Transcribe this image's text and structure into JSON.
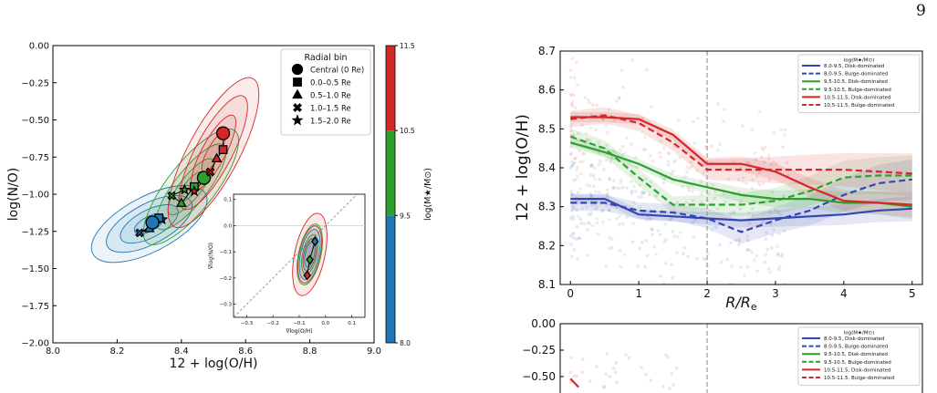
{
  "page_number": "9",
  "chart_data": [
    {
      "type": "scatter",
      "xlabel": "12 + log(O/H)",
      "ylabel": "log(N/O)",
      "xlim": [
        8.0,
        9.0
      ],
      "ylim": [
        -2.0,
        0.0
      ],
      "xticks": [
        "8.0",
        "8.2",
        "8.4",
        "8.6",
        "8.8",
        "9.0"
      ],
      "yticks": [
        "0.00",
        "−0.25",
        "−0.50",
        "−0.75",
        "−1.00",
        "−1.25",
        "−1.50",
        "−1.75",
        "−2.00"
      ],
      "legend": {
        "title": "Radial bin",
        "placement": "top-right",
        "entries": [
          {
            "label": "Central (0 Re)",
            "marker": "circle"
          },
          {
            "label": "0.0–0.5 Re",
            "marker": "square"
          },
          {
            "label": "0.5–1.0 Re",
            "marker": "triangle"
          },
          {
            "label": "1.0–1.5 Re",
            "marker": "x"
          },
          {
            "label": "1.5–2.0 Re",
            "marker": "star"
          }
        ]
      },
      "colorbar": {
        "label": "log(M★/M⊙)",
        "ticks": [
          "8.0",
          "9.5",
          "10.5",
          "11.5"
        ],
        "bins": [
          {
            "from": 8.0,
            "to": 9.5,
            "color": "#1f77b4"
          },
          {
            "from": 9.5,
            "to": 10.5,
            "color": "#2ca02c"
          },
          {
            "from": 10.5,
            "to": 11.5,
            "color": "#d62728"
          }
        ]
      },
      "series": [
        {
          "color": "#1f77b4",
          "points": [
            {
              "bin": "circle",
              "x": 8.31,
              "y": -1.19
            },
            {
              "bin": "square",
              "x": 8.33,
              "y": -1.16
            },
            {
              "bin": "triangle",
              "x": 8.3,
              "y": -1.23
            },
            {
              "bin": "x",
              "x": 8.27,
              "y": -1.26
            },
            {
              "bin": "star",
              "x": 8.34,
              "y": -1.17
            }
          ]
        },
        {
          "color": "#2ca02c",
          "points": [
            {
              "bin": "circle",
              "x": 8.47,
              "y": -0.89
            },
            {
              "bin": "square",
              "x": 8.44,
              "y": -0.95
            },
            {
              "bin": "triangle",
              "x": 8.4,
              "y": -1.06
            },
            {
              "bin": "x",
              "x": 8.37,
              "y": -1.01
            },
            {
              "bin": "star",
              "x": 8.41,
              "y": -0.97
            }
          ]
        },
        {
          "color": "#d62728",
          "points": [
            {
              "bin": "circle",
              "x": 8.53,
              "y": -0.59
            },
            {
              "bin": "square",
              "x": 8.53,
              "y": -0.7
            },
            {
              "bin": "triangle",
              "x": 8.51,
              "y": -0.76
            },
            {
              "bin": "x",
              "x": 8.49,
              "y": -0.85
            },
            {
              "bin": "star",
              "x": 8.44,
              "y": -0.98
            }
          ]
        }
      ],
      "inset": {
        "xlabel": "∇log(O/H)",
        "ylabel": "∇log(N/O)",
        "xlim": [
          -0.35,
          0.15
        ],
        "ylim": [
          -0.35,
          0.12
        ],
        "xticks": [
          "−0.3",
          "−0.2",
          "−0.1",
          "0.0",
          "0.1"
        ],
        "yticks": [
          "0.1",
          "0.0",
          "−0.1",
          "−0.2",
          "−0.3"
        ],
        "points": [
          {
            "color": "#1f77b4",
            "x": -0.04,
            "y": -0.06
          },
          {
            "color": "#2ca02c",
            "x": -0.06,
            "y": -0.13
          },
          {
            "color": "#d62728",
            "x": -0.07,
            "y": -0.19
          }
        ]
      }
    },
    {
      "type": "line",
      "xlabel": "R/Re",
      "ylabel": "12 + log(O/H)",
      "xlim": [
        -0.15,
        5.15
      ],
      "ylim": [
        8.1,
        8.7
      ],
      "xticks": [
        "0",
        "1",
        "2",
        "3",
        "4",
        "5"
      ],
      "yticks": [
        "8.1",
        "8.2",
        "8.3",
        "8.4",
        "8.5",
        "8.6",
        "8.7"
      ],
      "vline": 2,
      "legend": {
        "title": "log(M★/M⊙)",
        "placement": "top-right"
      },
      "series": [
        {
          "name": "8.0-9.5, Disk-dominated",
          "color": "#3446b0",
          "dash": false,
          "x": [
            0,
            0.5,
            1,
            1.5,
            2,
            2.5,
            3,
            3.5,
            4,
            4.5,
            5
          ],
          "y": [
            8.32,
            8.32,
            8.28,
            8.275,
            8.27,
            8.265,
            8.27,
            8.275,
            8.28,
            8.29,
            8.295
          ]
        },
        {
          "name": "8.0-9.5, Bulge-dominated",
          "color": "#3446b0",
          "dash": true,
          "x": [
            0,
            0.5,
            1,
            1.5,
            2,
            2.5,
            3,
            3.5,
            4,
            4.5,
            5
          ],
          "y": [
            8.31,
            8.31,
            8.29,
            8.285,
            8.27,
            8.235,
            8.265,
            8.29,
            8.33,
            8.36,
            8.37
          ]
        },
        {
          "name": "9.5-10.5, Disk-dominated",
          "color": "#2ca02c",
          "dash": false,
          "x": [
            0,
            0.5,
            1,
            1.5,
            2,
            2.5,
            3,
            3.5,
            4,
            4.5,
            5
          ],
          "y": [
            8.465,
            8.44,
            8.41,
            8.37,
            8.35,
            8.33,
            8.32,
            8.32,
            8.31,
            8.31,
            8.3
          ]
        },
        {
          "name": "9.5-10.5, Bulge-dominated",
          "color": "#2ca02c",
          "dash": true,
          "x": [
            0,
            0.5,
            1,
            1.5,
            2,
            2.5,
            3,
            3.5,
            4,
            4.5,
            5
          ],
          "y": [
            8.48,
            8.45,
            8.375,
            8.305,
            8.305,
            8.305,
            8.315,
            8.34,
            8.375,
            8.38,
            8.38
          ]
        },
        {
          "name": "10.5-11.5, Disk-dominated",
          "color": "#d62728",
          "dash": false,
          "x": [
            0,
            0.5,
            1,
            1.5,
            2,
            2.5,
            3,
            3.5,
            4,
            4.5,
            5
          ],
          "y": [
            8.53,
            8.53,
            8.525,
            8.485,
            8.41,
            8.41,
            8.39,
            8.35,
            8.315,
            8.31,
            8.305
          ]
        },
        {
          "name": "10.5-11.5, Bulge-dominated",
          "color": "#d62728",
          "dash": true,
          "x": [
            0,
            0.5,
            1,
            1.5,
            2,
            2.5,
            3,
            3.5,
            4,
            4.5,
            5
          ],
          "y": [
            8.525,
            8.535,
            8.515,
            8.465,
            8.395,
            8.395,
            8.395,
            8.395,
            8.395,
            8.39,
            8.385
          ]
        }
      ]
    },
    {
      "type": "line",
      "ylim": [
        -0.6,
        0.0
      ],
      "yticks": [
        "0.00",
        "−0.25",
        "−0.50"
      ],
      "vline": 2,
      "legend": {
        "title": "log(M★/M⊙)",
        "placement": "top-right",
        "entries": [
          {
            "name": "8.0-9.5, Disk-dominated",
            "color": "#3446b0",
            "dash": false
          },
          {
            "name": "8.0-9.5, Bulge-dominated",
            "color": "#3446b0",
            "dash": true
          },
          {
            "name": "9.5-10.5, Disk-dominated",
            "color": "#2ca02c",
            "dash": false
          },
          {
            "name": "9.5-10.5, Bulge-dominated",
            "color": "#2ca02c",
            "dash": true
          },
          {
            "name": "10.5-11.5, Disk-dominated",
            "color": "#d62728",
            "dash": false
          },
          {
            "name": "10.5-11.5, Bulge-dominated",
            "color": "#d62728",
            "dash": true
          }
        ]
      }
    }
  ]
}
